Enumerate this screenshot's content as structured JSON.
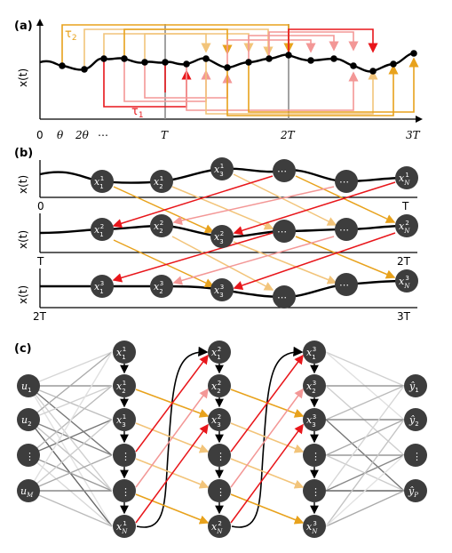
{
  "panels": {
    "a": {
      "label": "(a)",
      "ylabel": "x(t)",
      "xticks": [
        "0",
        "θ",
        "2θ",
        "⋯",
        "T",
        "2T",
        "3T"
      ],
      "tau1": "τ",
      "tau1_sub": "1",
      "tau2": "τ",
      "tau2_sub": "2"
    },
    "b": {
      "label": "(b)",
      "ylabel": "x(t)",
      "row1_left": "0",
      "row1_right": "T",
      "row2_left": "T",
      "row2_right": "2T",
      "row3_left": "2T",
      "row3_right": "3T"
    },
    "c": {
      "label": "(c)"
    }
  },
  "nodes": {
    "dots": "⋮",
    "ellipsis": "⋯",
    "x": "x",
    "u": "u",
    "yhat": "ŷ",
    "N": "N",
    "M": "M",
    "P": "P"
  },
  "colors": {
    "node": "#3d3d3d",
    "red": "#e8161b",
    "pink": "#f39796",
    "orange": "#e8a21c",
    "light_orange": "#f2c47a",
    "gray_line": "#8a8a8a"
  }
}
